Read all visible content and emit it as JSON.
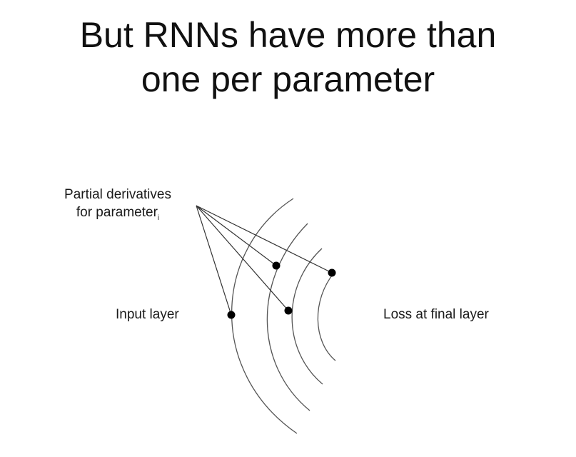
{
  "slide": {
    "title_line1": "But RNNs have more than",
    "title_line2": "one per parameter"
  },
  "diagram": {
    "partial_label_line1": "Partial derivatives",
    "partial_label_line2": "for parameter",
    "partial_label_subscript": "i",
    "input_label": "Input layer",
    "loss_label": "Loss at final layer",
    "colors": {
      "stroke": "#555555",
      "dot": "#000000",
      "text": "#1a1a1a"
    }
  }
}
